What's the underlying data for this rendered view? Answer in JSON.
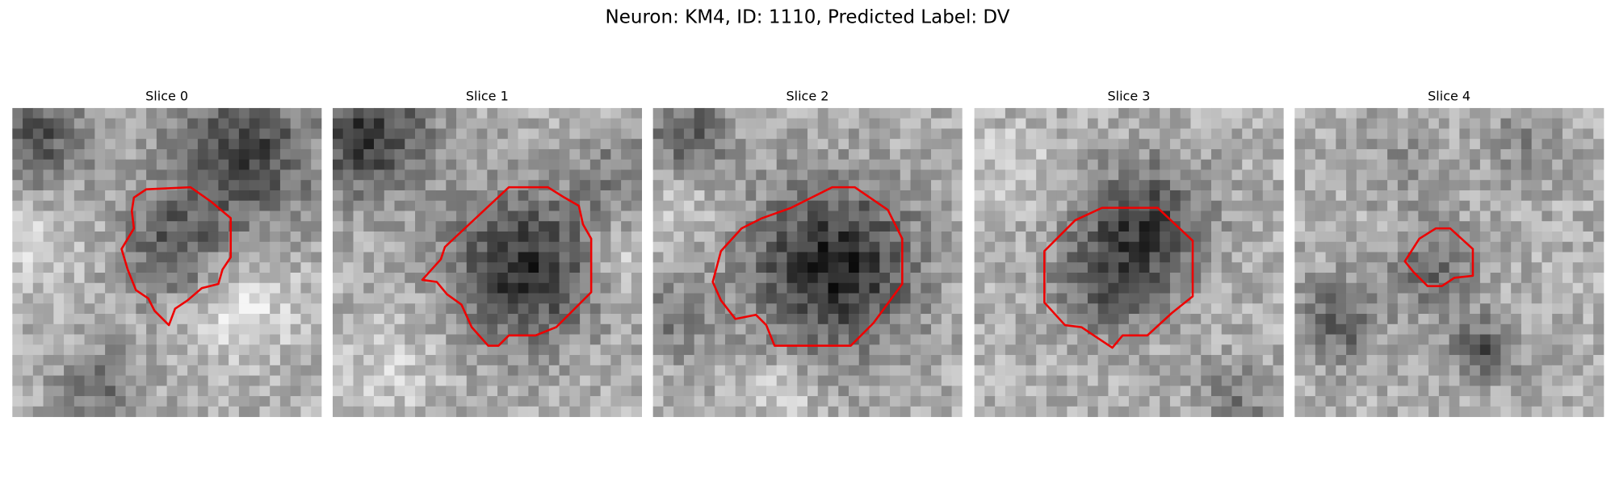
{
  "title": "Neuron: KM4, ID: 1110, Predicted Label: DV",
  "panels": [
    {
      "title": "Slice 0"
    },
    {
      "title": "Slice 1"
    },
    {
      "title": "Slice 2"
    },
    {
      "title": "Slice 3"
    },
    {
      "title": "Slice 4"
    }
  ]
}
